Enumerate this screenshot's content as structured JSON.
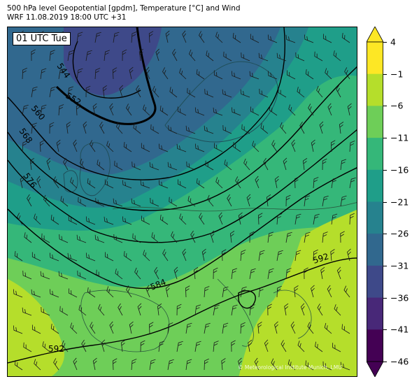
{
  "header": {
    "title_line1": "500 hPa level Geopotential [gpdm], Temperature [°C] and Wind",
    "title_line2": "WRF 11.08.2019 18:00 UTC +31"
  },
  "map": {
    "time_label": "01 UTC Tue",
    "credit": "© Meteorological Institute Munich, LMU",
    "contour_labels": [
      "544",
      "552",
      "560",
      "568",
      "576",
      "584",
      "592",
      "592"
    ]
  },
  "colorbar": {
    "tick_labels": [
      "4",
      "−1",
      "−6",
      "−11",
      "−16",
      "−21",
      "−26",
      "−31",
      "−36",
      "−41",
      "−46"
    ],
    "colors": [
      "#fde725",
      "#b5de2b",
      "#6ece58",
      "#35b779",
      "#1f9e89",
      "#26828e",
      "#31688e",
      "#3e4989",
      "#482878",
      "#440154"
    ],
    "extend_max_color": "#fde725",
    "extend_min_color": "#440154"
  }
}
